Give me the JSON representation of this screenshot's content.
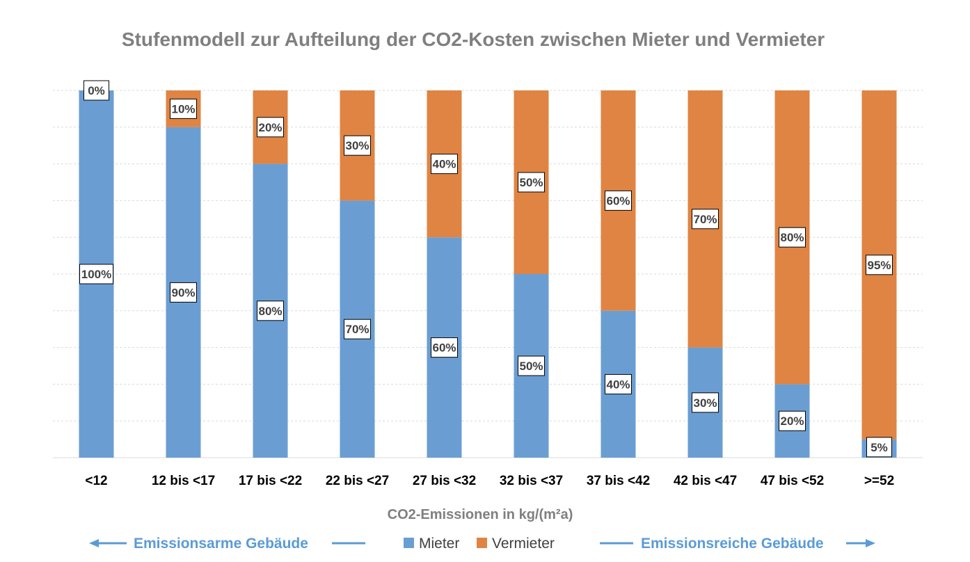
{
  "chart_data": {
    "type": "bar",
    "stacked": true,
    "title": "Stufenmodell zur Aufteilung der CO2-Kosten zwischen Mieter und Vermieter",
    "xlabel": "CO2-Emissionen in kg/(m²a)",
    "ylabel": "",
    "ylim": [
      0,
      100
    ],
    "grid": true,
    "legend_position": "bottom",
    "categories": [
      "<12",
      "12 bis <17",
      "17 bis <22",
      "22 bis <27",
      "27 bis <32",
      "32 bis <37",
      "37 bis <42",
      "42 bis <47",
      "47 bis <52",
      ">=52"
    ],
    "series": [
      {
        "name": "Mieter",
        "color": "#6a9ed3",
        "values": [
          100,
          90,
          80,
          70,
          60,
          50,
          40,
          30,
          20,
          5
        ],
        "labels": [
          "100%",
          "90%",
          "80%",
          "70%",
          "60%",
          "50%",
          "40%",
          "30%",
          "20%",
          "5%"
        ]
      },
      {
        "name": "Vermieter",
        "color": "#e08443",
        "values": [
          0,
          10,
          20,
          30,
          40,
          50,
          60,
          70,
          80,
          95
        ],
        "labels": [
          "0%",
          "10%",
          "20%",
          "30%",
          "40%",
          "50%",
          "60%",
          "70%",
          "80%",
          "95%"
        ]
      }
    ],
    "annotations": {
      "left": "Emissionsarme Gebäude",
      "right": "Emissionsreiche Gebäude",
      "arrow_color": "#5b9bd5"
    }
  }
}
